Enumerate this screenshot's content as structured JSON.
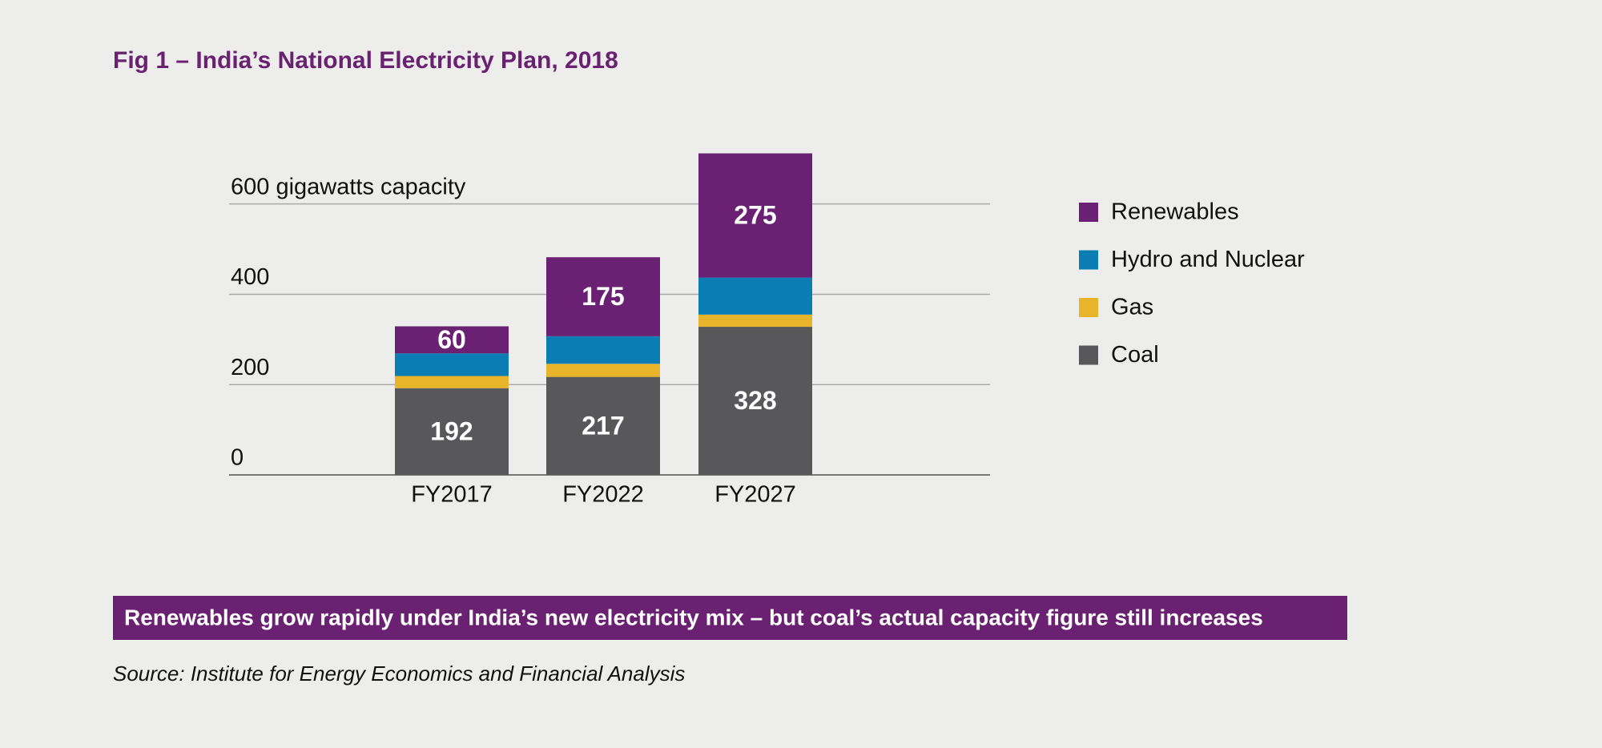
{
  "chart_data": {
    "type": "stacked_bar",
    "title": "Fig 1 – India’s National Electricity Plan, 2018",
    "categories": [
      "FY2017",
      "FY2022",
      "FY2027"
    ],
    "series": [
      {
        "name": "Coal",
        "color": "#58585a",
        "values": [
          192,
          217,
          328
        ],
        "show_labels": true
      },
      {
        "name": "Gas",
        "color": "#e8b52a",
        "values": [
          27,
          29,
          27
        ],
        "show_labels": false
      },
      {
        "name": "Hydro and Nuclear",
        "color": "#0a7db4",
        "values": [
          50,
          61,
          82
        ],
        "show_labels": false
      },
      {
        "name": "Renewables",
        "color": "#6b2173",
        "values": [
          60,
          175,
          275
        ],
        "show_labels": true
      }
    ],
    "ylim": [
      0,
      720
    ],
    "yticks": [
      0,
      200,
      400,
      {
        "value": 600,
        "label": "600 gigawatts capacity"
      }
    ],
    "grid": true,
    "legend": "right",
    "caption": "Renewables grow rapidly under India’s new electricity mix – but coal’s actual capacity figure still increases",
    "source": "Source: Institute for Energy Economics and Financial Analysis"
  }
}
